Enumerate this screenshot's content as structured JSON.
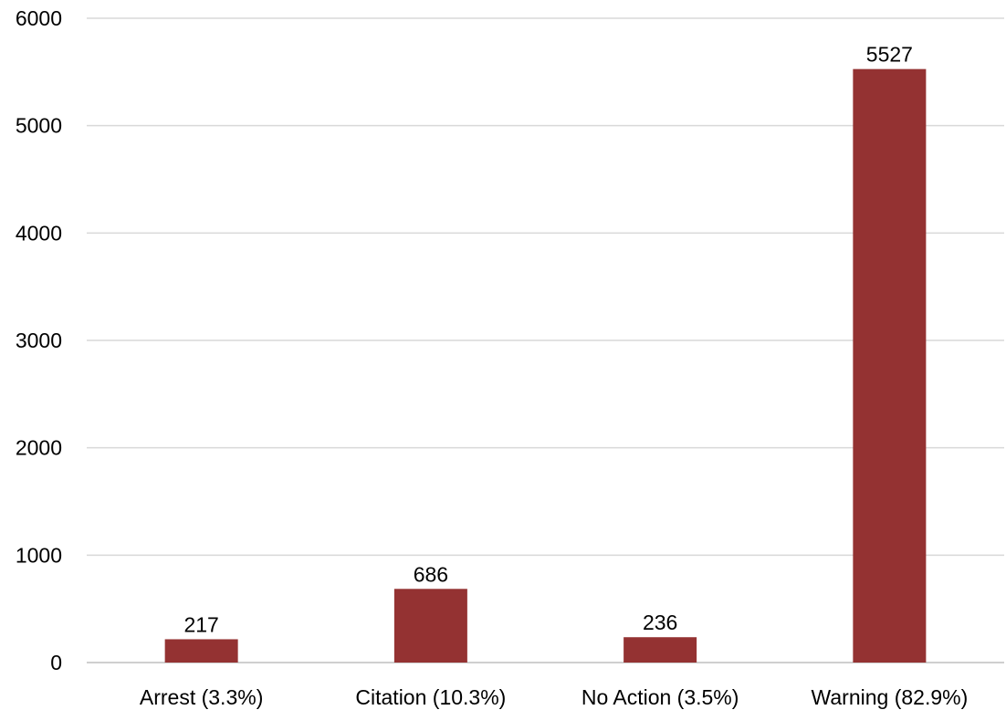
{
  "chart_data": {
    "type": "bar",
    "categories": [
      "Arrest (3.3%)",
      "Citation (10.3%)",
      "No Action (3.5%)",
      "Warning (82.9%)"
    ],
    "values": [
      217,
      686,
      236,
      5527
    ],
    "title": "",
    "xlabel": "",
    "ylabel": "",
    "ylim": [
      0,
      6000
    ],
    "yticks": [
      0,
      1000,
      2000,
      3000,
      4000,
      5000,
      6000
    ],
    "grid": true,
    "legend": "none",
    "bar_color": "#943232",
    "data_labels": true
  }
}
